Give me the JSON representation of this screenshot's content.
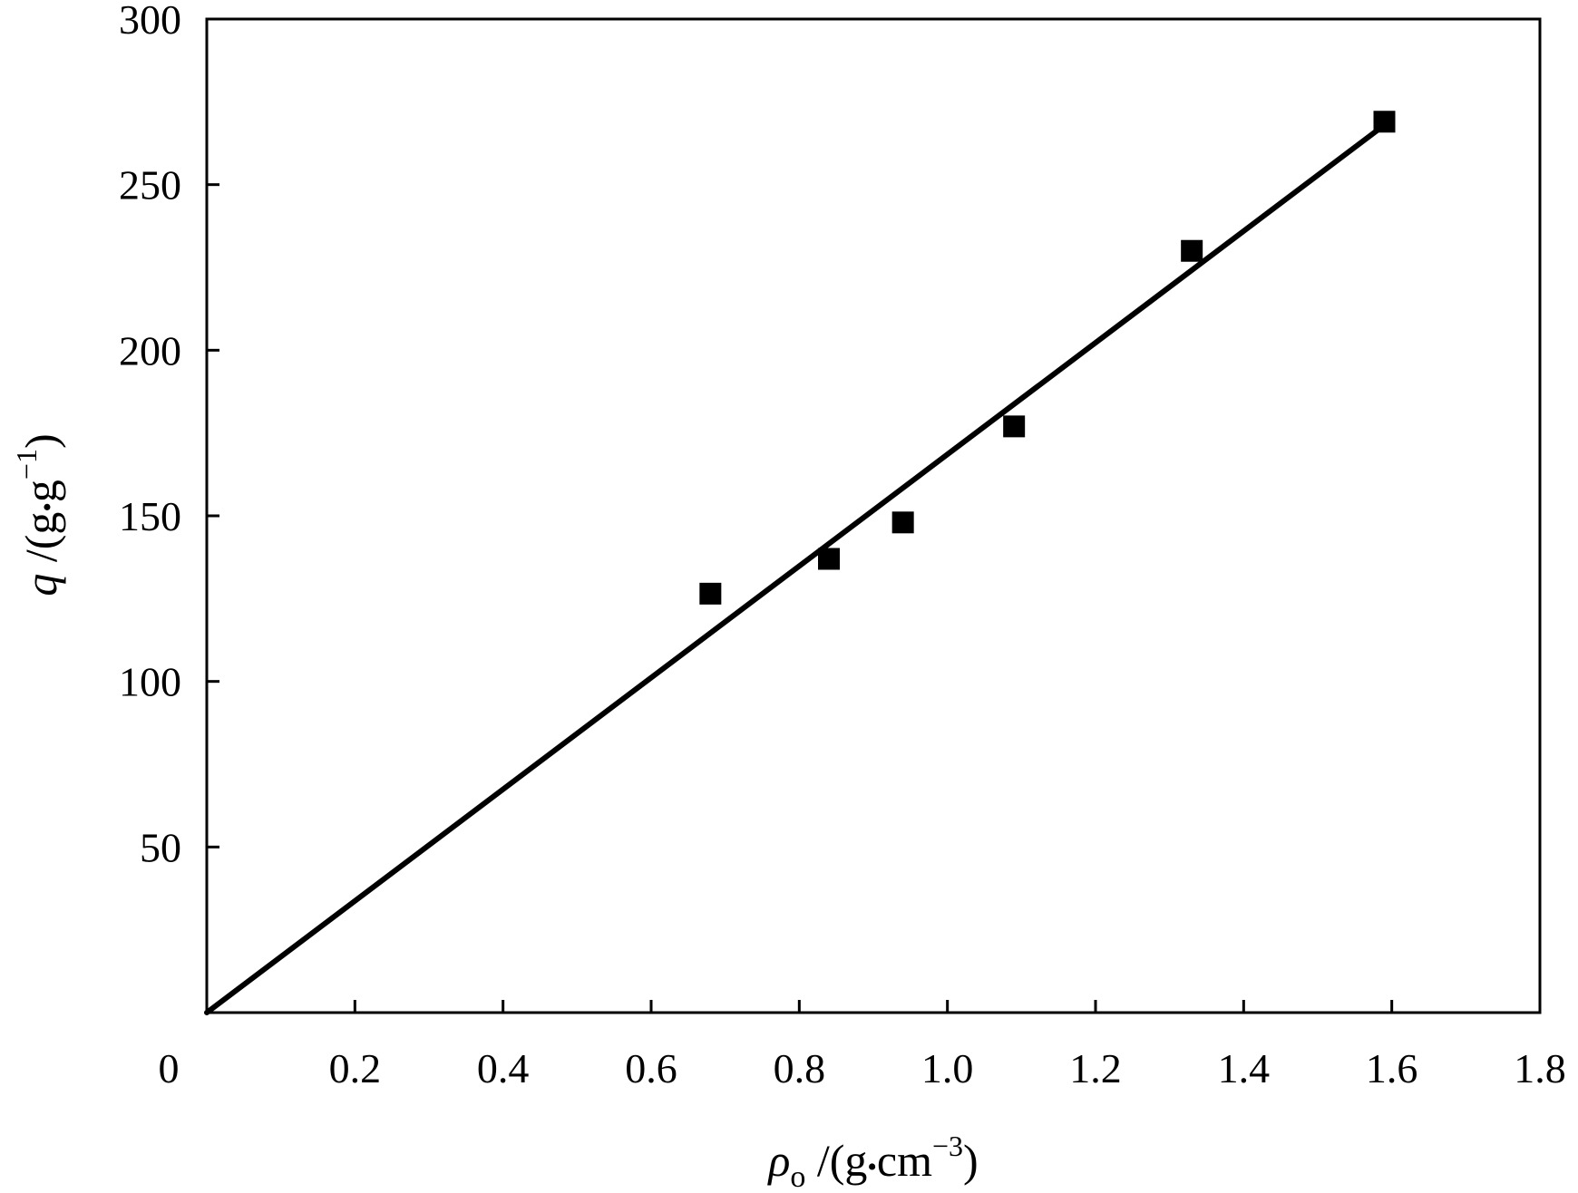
{
  "chart_data": {
    "type": "scatter",
    "xlabel": {
      "symbol": "ρ",
      "subscript": "o",
      "unit_open": " /(g",
      "dot": "•",
      "unit_mid": "cm",
      "superscript": "−3",
      "unit_close": ")"
    },
    "ylabel": {
      "symbol": "q",
      "unit_open": " /(g",
      "dot": "•",
      "unit_mid": "g",
      "superscript": "−1",
      "unit_close": ")"
    },
    "xlim": [
      0,
      1.8
    ],
    "ylim": [
      0,
      300
    ],
    "x_ticks": [
      0.2,
      0.4,
      0.6,
      0.8,
      1.0,
      1.2,
      1.4,
      1.6,
      1.8
    ],
    "x_tick_labels": [
      "0.2",
      "0.4",
      "0.6",
      "0.8",
      "1.0",
      "1.2",
      "1.4",
      "1.6",
      "1.8"
    ],
    "y_ticks": [
      50,
      100,
      150,
      200,
      250,
      300
    ],
    "y_tick_labels": [
      "50",
      "100",
      "150",
      "200",
      "250",
      "300"
    ],
    "origin_label": "0",
    "grid": false,
    "series": [
      {
        "marker": "square",
        "x": [
          0.68,
          0.84,
          0.94,
          1.09,
          1.33,
          1.59
        ],
        "y": [
          126.5,
          137,
          148,
          177,
          230,
          269
        ]
      }
    ],
    "fit_line": {
      "x": [
        0,
        1.59
      ],
      "y": [
        0,
        268
      ]
    }
  }
}
